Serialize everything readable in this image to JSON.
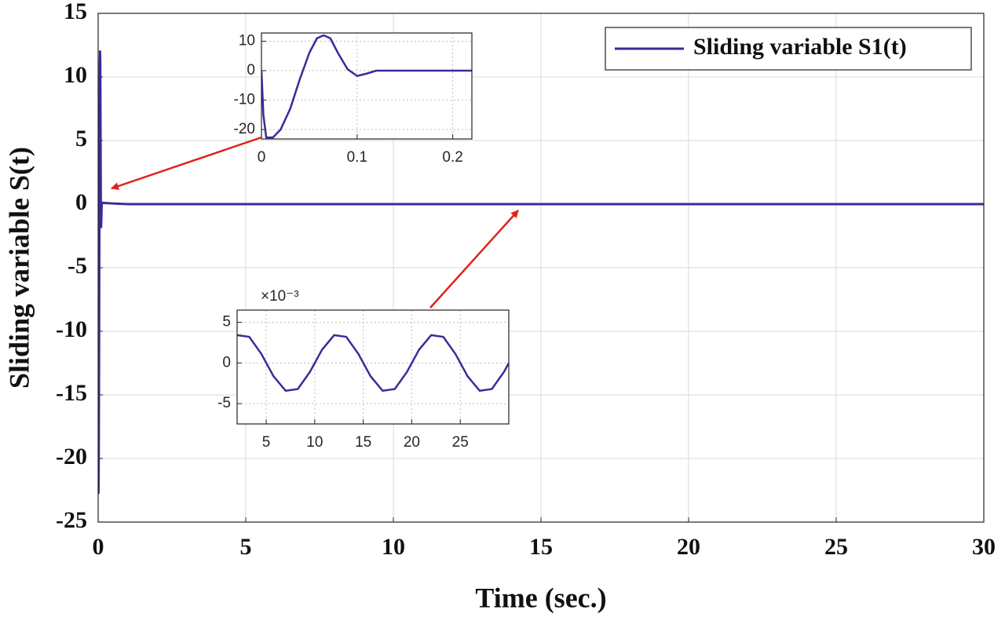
{
  "chart_data": [
    {
      "type": "line",
      "xlabel": "Time (sec.)",
      "ylabel": "Sliding variable S(t)",
      "x": [
        0,
        0.002,
        0.005,
        0.012,
        0.02,
        0.03,
        0.04,
        0.05,
        0.058,
        0.065,
        0.072,
        0.08,
        0.09,
        0.1,
        0.11,
        0.12,
        0.14,
        0.5,
        1,
        30
      ],
      "series": [
        {
          "name": "Sliding variable S1(t)",
          "color": "#3b2a9a",
          "values": [
            0,
            -15,
            -22.7,
            -22.7,
            -20,
            -13,
            -3,
            6,
            11,
            12,
            11,
            6,
            0.5,
            -1.8,
            -1,
            0,
            0.1,
            0.05,
            0,
            0
          ]
        }
      ],
      "xlim": [
        0,
        30
      ],
      "xticks": [
        0,
        5,
        10,
        15,
        20,
        25,
        30
      ],
      "ylim": [
        -25,
        15
      ],
      "yticks": [
        -25,
        -20,
        -15,
        -10,
        -5,
        0,
        5,
        10,
        15
      ],
      "grid": true,
      "legend": "upper right"
    },
    {
      "type": "line",
      "x": [
        0,
        0.002,
        0.005,
        0.012,
        0.02,
        0.03,
        0.04,
        0.05,
        0.058,
        0.065,
        0.072,
        0.08,
        0.09,
        0.1,
        0.11,
        0.12,
        0.14,
        0.22
      ],
      "series": [
        {
          "color": "#3b2a9a",
          "values": [
            0,
            -15,
            -22.7,
            -22.7,
            -20,
            -13,
            -3,
            6,
            11,
            12,
            11,
            6,
            0.5,
            -1.8,
            -1,
            0,
            0,
            0
          ]
        }
      ],
      "xlim": [
        0,
        0.22
      ],
      "xticks": [
        0,
        0.1,
        0.2
      ],
      "ylim": [
        -23.2,
        12.8
      ],
      "yticks": [
        -20,
        -10,
        0,
        10
      ],
      "grid": true
    },
    {
      "type": "line",
      "y_exponent": "×10⁻³",
      "x": [
        2,
        3.25,
        4.5,
        5.75,
        7,
        8.25,
        9.5,
        10.75,
        12,
        13.25,
        14.5,
        15.75,
        17,
        18.25,
        19.5,
        20.75,
        22,
        23.25,
        24.5,
        25.75,
        27,
        28.25,
        29.5,
        30
      ],
      "series": [
        {
          "color": "#3b2a9a",
          "values": [
            3.42,
            3.21,
            1.11,
            -1.63,
            -3.42,
            -3.21,
            -1.11,
            1.63,
            3.42,
            3.21,
            1.11,
            -1.63,
            -3.42,
            -3.21,
            -1.11,
            1.63,
            3.42,
            3.21,
            1.11,
            -1.63,
            -3.42,
            -3.21,
            -1.11,
            0
          ]
        }
      ],
      "xlim": [
        2,
        30
      ],
      "xticks": [
        5,
        10,
        15,
        20,
        25
      ],
      "ylim": [
        -7.5,
        6.5
      ],
      "yticks": [
        -5,
        0,
        5
      ],
      "grid": true
    }
  ]
}
